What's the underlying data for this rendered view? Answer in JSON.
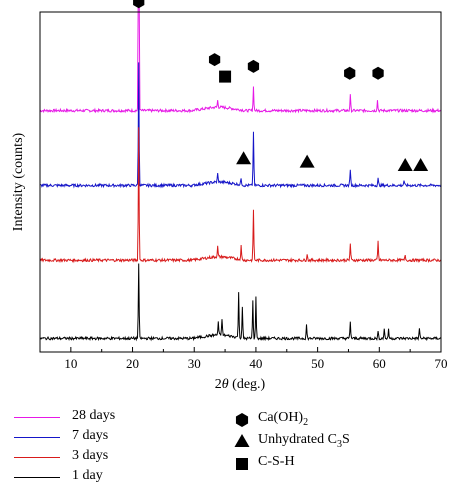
{
  "chart_data": {
    "type": "line",
    "title": "",
    "xlabel_prefix": "2",
    "xlabel_theta": "θ",
    "xlabel_suffix": " (deg.)",
    "ylabel": "Intensity (counts)",
    "xlim": [
      5,
      70
    ],
    "xticks": [
      10,
      20,
      30,
      40,
      50,
      60,
      70
    ],
    "yticks_shown": false,
    "grid": false,
    "legend_position": "bottom",
    "series": [
      {
        "name": "28 days",
        "color": "#e619e6",
        "baseline": 0.71,
        "peaks": [
          [
            21.0,
            0.93
          ],
          [
            33.8,
            0.02
          ],
          [
            39.6,
            0.07
          ],
          [
            55.3,
            0.045
          ],
          [
            59.7,
            0.03
          ]
        ]
      },
      {
        "name": "7 days",
        "color": "#1515c8",
        "baseline": 0.49,
        "peaks": [
          [
            21.0,
            0.36
          ],
          [
            33.8,
            0.025
          ],
          [
            37.6,
            0.02
          ],
          [
            39.6,
            0.16
          ],
          [
            55.3,
            0.05
          ],
          [
            59.8,
            0.02
          ],
          [
            64.0,
            0.015
          ]
        ]
      },
      {
        "name": "3 days",
        "color": "#d81b1b",
        "baseline": 0.27,
        "peaks": [
          [
            21.0,
            0.39
          ],
          [
            33.8,
            0.03
          ],
          [
            37.6,
            0.04
          ],
          [
            39.6,
            0.15
          ],
          [
            48.3,
            0.02
          ],
          [
            55.3,
            0.05
          ],
          [
            59.8,
            0.055
          ],
          [
            64.2,
            0.015
          ]
        ]
      },
      {
        "name": "1 day",
        "color": "#000000",
        "baseline": 0.04,
        "peaks": [
          [
            21.0,
            0.22
          ],
          [
            33.9,
            0.04
          ],
          [
            34.5,
            0.05
          ],
          [
            37.2,
            0.13
          ],
          [
            37.8,
            0.09
          ],
          [
            39.5,
            0.11
          ],
          [
            40.0,
            0.12
          ],
          [
            48.2,
            0.04
          ],
          [
            55.3,
            0.05
          ],
          [
            59.8,
            0.02
          ],
          [
            60.8,
            0.03
          ],
          [
            61.5,
            0.025
          ],
          [
            66.5,
            0.03
          ]
        ]
      }
    ],
    "markers": [
      {
        "shape": "hexagon",
        "x": 21.0,
        "level": 1.03
      },
      {
        "shape": "hexagon",
        "x": 33.3,
        "level": 0.86
      },
      {
        "shape": "hexagon",
        "x": 39.6,
        "level": 0.84
      },
      {
        "shape": "hexagon",
        "x": 55.2,
        "level": 0.82
      },
      {
        "shape": "hexagon",
        "x": 59.8,
        "level": 0.82
      },
      {
        "shape": "square",
        "x": 35.0,
        "level": 0.81
      },
      {
        "shape": "triangle",
        "x": 38.0,
        "level": 0.57
      },
      {
        "shape": "triangle",
        "x": 48.3,
        "level": 0.56
      },
      {
        "shape": "triangle",
        "x": 64.2,
        "level": 0.55
      },
      {
        "shape": "triangle",
        "x": 66.7,
        "level": 0.55
      }
    ],
    "phase_legend": [
      {
        "shape": "hexagon",
        "label": "Ca(OH)",
        "sub": "2"
      },
      {
        "shape": "triangle",
        "label": "Unhydrated C",
        "sub": "3",
        "suffix": "S"
      },
      {
        "shape": "square",
        "label": "C-S-H",
        "sub": ""
      }
    ]
  }
}
